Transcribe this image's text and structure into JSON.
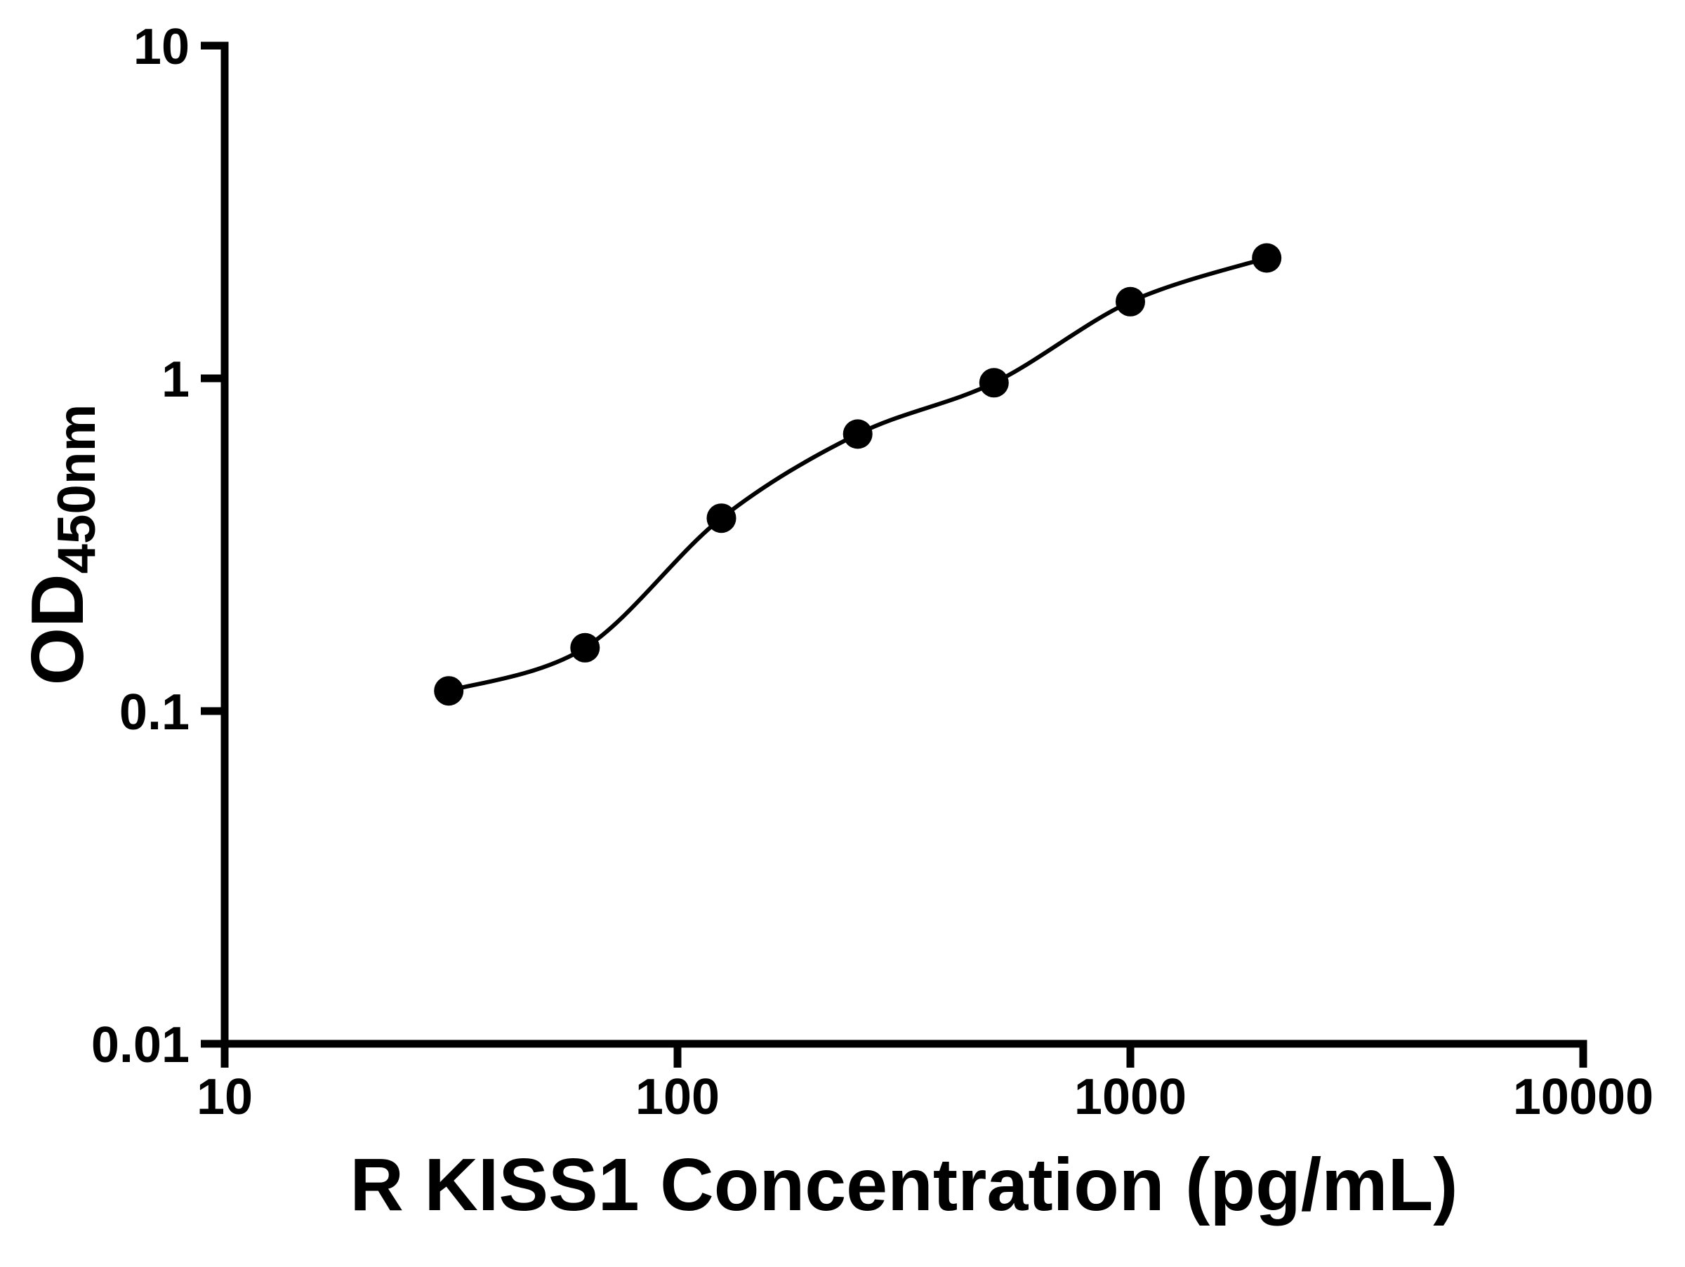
{
  "figure": {
    "background_color": "#ffffff",
    "axis_color": "#000000"
  },
  "chart_data": {
    "type": "scatter",
    "title": "",
    "xlabel": "R KISS1 Concentration (pg/mL)",
    "ylabel_main": "OD",
    "ylabel_sub": "450nm",
    "x_scale": "log",
    "y_scale": "log",
    "xlim": [
      10,
      10000
    ],
    "ylim": [
      0.01,
      10
    ],
    "x_ticks": [
      10,
      100,
      1000,
      10000
    ],
    "x_tick_labels": [
      "10",
      "100",
      "1000",
      "10000"
    ],
    "y_ticks": [
      0.01,
      0.1,
      1,
      10
    ],
    "y_tick_labels": [
      "0.01",
      "0.1",
      "1",
      "10"
    ],
    "grid": false,
    "legend": "none",
    "series": [
      {
        "marker": "circle",
        "marker_color": "#000000",
        "line_color": "#000000",
        "line_style": "smooth-fit",
        "points": [
          {
            "x": 31.25,
            "y": 0.115
          },
          {
            "x": 62.5,
            "y": 0.155
          },
          {
            "x": 125,
            "y": 0.38
          },
          {
            "x": 250,
            "y": 0.68
          },
          {
            "x": 500,
            "y": 0.97
          },
          {
            "x": 1000,
            "y": 1.7
          },
          {
            "x": 2000,
            "y": 2.3
          }
        ]
      }
    ]
  }
}
